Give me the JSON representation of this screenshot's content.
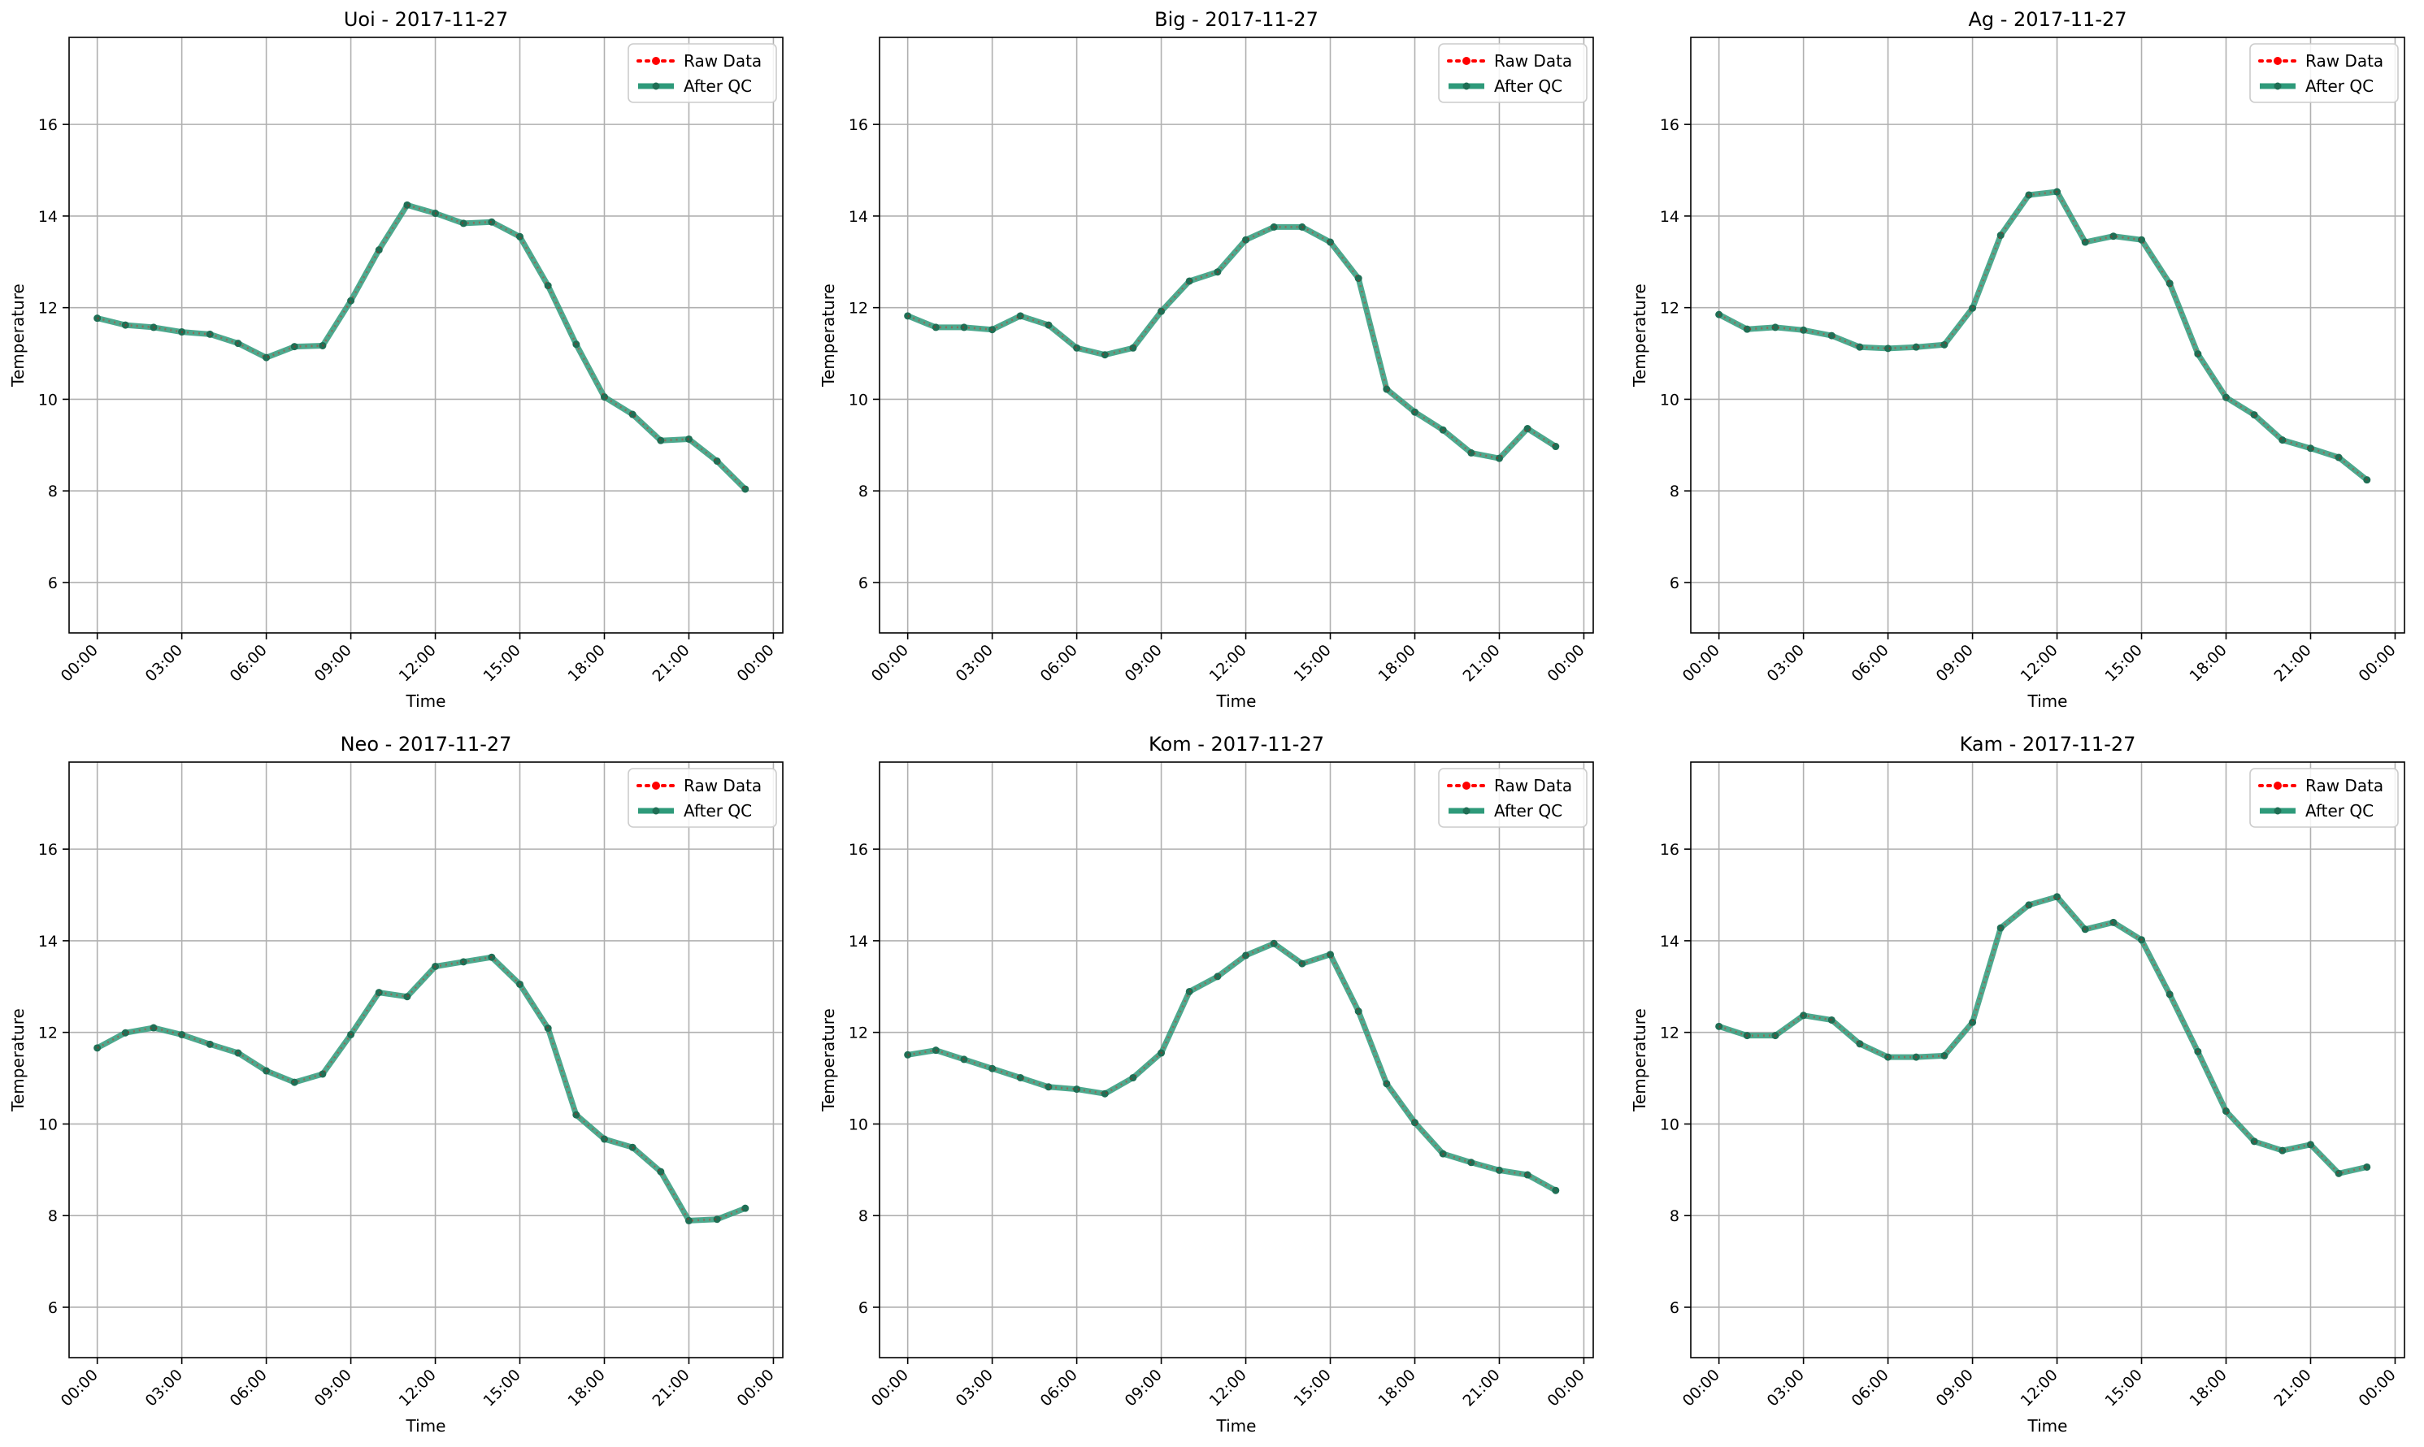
{
  "figure": {
    "legend_placement": "upper right",
    "grid": true
  },
  "chart_data": [
    {
      "type": "line",
      "title": "Uoi - 2017-11-27",
      "xlabel": "Time",
      "ylabel": "Temperature",
      "xlim": [
        "23:00 (prev day)",
        "00:20 (next day)"
      ],
      "ylim": [
        4.9,
        17.9
      ],
      "x_ticks": [
        "00:00",
        "03:00",
        "06:00",
        "09:00",
        "12:00",
        "15:00",
        "18:00",
        "21:00",
        "00:00"
      ],
      "y_ticks": [
        "6",
        "8",
        "10",
        "12",
        "14",
        "16"
      ],
      "x_hours": [
        0,
        1,
        2,
        3,
        4,
        5,
        6,
        7,
        8,
        9,
        10,
        11,
        12,
        13,
        14,
        15,
        16,
        17,
        18,
        19,
        20,
        21,
        22,
        23
      ],
      "series": [
        {
          "name": "Raw Data",
          "color": "#ff0000",
          "values": [
            11.77,
            11.62,
            11.57,
            11.47,
            11.42,
            11.22,
            10.91,
            11.15,
            11.17,
            12.15,
            13.26,
            14.24,
            14.06,
            13.84,
            13.87,
            13.55,
            12.48,
            11.2,
            10.05,
            9.67,
            9.1,
            9.13,
            8.65,
            8.04
          ]
        },
        {
          "name": "After QC",
          "color": "#2e9a7a",
          "values": [
            11.77,
            11.62,
            11.57,
            11.47,
            11.42,
            11.22,
            10.91,
            11.15,
            11.17,
            12.15,
            13.26,
            14.24,
            14.06,
            13.84,
            13.87,
            13.55,
            12.48,
            11.2,
            10.05,
            9.67,
            9.1,
            9.13,
            8.65,
            8.04
          ]
        }
      ]
    },
    {
      "type": "line",
      "title": "Big - 2017-11-27",
      "xlabel": "Time",
      "ylabel": "Temperature",
      "xlim": [
        "23:00 (prev day)",
        "00:20 (next day)"
      ],
      "ylim": [
        4.9,
        17.9
      ],
      "x_ticks": [
        "00:00",
        "03:00",
        "06:00",
        "09:00",
        "12:00",
        "15:00",
        "18:00",
        "21:00",
        "00:00"
      ],
      "y_ticks": [
        "6",
        "8",
        "10",
        "12",
        "14",
        "16"
      ],
      "x_hours": [
        0,
        1,
        2,
        3,
        4,
        5,
        6,
        7,
        8,
        9,
        10,
        11,
        12,
        13,
        14,
        15,
        16,
        17,
        18,
        19,
        20,
        21,
        22,
        23
      ],
      "series": [
        {
          "name": "Raw Data",
          "color": "#ff0000",
          "values": [
            11.82,
            11.57,
            11.57,
            11.52,
            11.82,
            11.62,
            11.12,
            10.97,
            11.12,
            11.92,
            12.58,
            12.78,
            13.48,
            13.76,
            13.76,
            13.43,
            12.64,
            10.22,
            9.72,
            9.33,
            8.83,
            8.71,
            9.36,
            8.97
          ]
        },
        {
          "name": "After QC",
          "color": "#2e9a7a",
          "values": [
            11.82,
            11.57,
            11.57,
            11.52,
            11.82,
            11.62,
            11.12,
            10.97,
            11.12,
            11.92,
            12.58,
            12.78,
            13.48,
            13.76,
            13.76,
            13.43,
            12.64,
            10.22,
            9.72,
            9.33,
            8.83,
            8.71,
            9.36,
            8.97
          ]
        }
      ]
    },
    {
      "type": "line",
      "title": "Ag - 2017-11-27",
      "xlabel": "Time",
      "ylabel": "Temperature",
      "xlim": [
        "23:00 (prev day)",
        "00:20 (next day)"
      ],
      "ylim": [
        4.9,
        17.9
      ],
      "x_ticks": [
        "00:00",
        "03:00",
        "06:00",
        "09:00",
        "12:00",
        "15:00",
        "18:00",
        "21:00",
        "00:00"
      ],
      "y_ticks": [
        "6",
        "8",
        "10",
        "12",
        "14",
        "16"
      ],
      "x_hours": [
        0,
        1,
        2,
        3,
        4,
        5,
        6,
        7,
        8,
        9,
        10,
        11,
        12,
        13,
        14,
        15,
        16,
        17,
        18,
        19,
        20,
        21,
        22,
        23
      ],
      "series": [
        {
          "name": "Raw Data",
          "color": "#ff0000",
          "values": [
            11.85,
            11.53,
            11.57,
            11.51,
            11.39,
            11.14,
            11.11,
            11.14,
            11.19,
            11.99,
            13.58,
            14.46,
            14.53,
            13.43,
            13.56,
            13.48,
            12.53,
            10.99,
            10.04,
            9.66,
            9.11,
            8.93,
            8.73,
            8.24
          ]
        },
        {
          "name": "After QC",
          "color": "#2e9a7a",
          "values": [
            11.85,
            11.53,
            11.57,
            11.51,
            11.39,
            11.14,
            11.11,
            11.14,
            11.19,
            11.99,
            13.58,
            14.46,
            14.53,
            13.43,
            13.56,
            13.48,
            12.53,
            10.99,
            10.04,
            9.66,
            9.11,
            8.93,
            8.73,
            8.24
          ]
        }
      ]
    },
    {
      "type": "line",
      "title": "Neo - 2017-11-27",
      "xlabel": "Time",
      "ylabel": "Temperature",
      "xlim": [
        "23:00 (prev day)",
        "00:20 (next day)"
      ],
      "ylim": [
        4.9,
        17.9
      ],
      "x_ticks": [
        "00:00",
        "03:00",
        "06:00",
        "09:00",
        "12:00",
        "15:00",
        "18:00",
        "21:00",
        "00:00"
      ],
      "y_ticks": [
        "6",
        "8",
        "10",
        "12",
        "14",
        "16"
      ],
      "x_hours": [
        0,
        1,
        2,
        3,
        4,
        5,
        6,
        7,
        8,
        9,
        10,
        11,
        12,
        13,
        14,
        15,
        16,
        17,
        18,
        19,
        20,
        21,
        22,
        23
      ],
      "series": [
        {
          "name": "Raw Data",
          "color": "#ff0000",
          "values": [
            11.66,
            11.99,
            12.1,
            11.95,
            11.74,
            11.55,
            11.16,
            10.91,
            11.09,
            11.95,
            12.87,
            12.78,
            13.44,
            13.54,
            13.64,
            13.05,
            12.09,
            10.2,
            9.67,
            9.49,
            8.96,
            7.89,
            7.92,
            8.16
          ]
        },
        {
          "name": "After QC",
          "color": "#2e9a7a",
          "values": [
            11.66,
            11.99,
            12.1,
            11.95,
            11.74,
            11.55,
            11.16,
            10.91,
            11.09,
            11.95,
            12.87,
            12.78,
            13.44,
            13.54,
            13.64,
            13.05,
            12.09,
            10.2,
            9.67,
            9.49,
            8.96,
            7.89,
            7.92,
            8.16
          ]
        }
      ]
    },
    {
      "type": "line",
      "title": "Kom - 2017-11-27",
      "xlabel": "Time",
      "ylabel": "Temperature",
      "xlim": [
        "23:00 (prev day)",
        "00:20 (next day)"
      ],
      "ylim": [
        4.9,
        17.9
      ],
      "x_ticks": [
        "00:00",
        "03:00",
        "06:00",
        "09:00",
        "12:00",
        "15:00",
        "18:00",
        "21:00",
        "00:00"
      ],
      "y_ticks": [
        "6",
        "8",
        "10",
        "12",
        "14",
        "16"
      ],
      "x_hours": [
        0,
        1,
        2,
        3,
        4,
        5,
        6,
        7,
        8,
        9,
        10,
        11,
        12,
        13,
        14,
        15,
        16,
        17,
        18,
        19,
        20,
        21,
        22,
        23
      ],
      "series": [
        {
          "name": "Raw Data",
          "color": "#ff0000",
          "values": [
            11.51,
            11.61,
            11.41,
            11.21,
            11.01,
            10.81,
            10.76,
            10.66,
            11.01,
            11.55,
            12.89,
            13.22,
            13.68,
            13.94,
            13.5,
            13.7,
            12.46,
            10.88,
            10.03,
            9.35,
            9.16,
            8.99,
            8.89,
            8.55
          ]
        },
        {
          "name": "After QC",
          "color": "#2e9a7a",
          "values": [
            11.51,
            11.61,
            11.41,
            11.21,
            11.01,
            10.81,
            10.76,
            10.66,
            11.01,
            11.55,
            12.89,
            13.22,
            13.68,
            13.94,
            13.5,
            13.7,
            12.46,
            10.88,
            10.03,
            9.35,
            9.16,
            8.99,
            8.89,
            8.55
          ]
        }
      ]
    },
    {
      "type": "line",
      "title": "Kam - 2017-11-27",
      "xlabel": "Time",
      "ylabel": "Temperature",
      "xlim": [
        "23:00 (prev day)",
        "00:20 (next day)"
      ],
      "ylim": [
        4.9,
        17.9
      ],
      "x_ticks": [
        "00:00",
        "03:00",
        "06:00",
        "09:00",
        "12:00",
        "15:00",
        "18:00",
        "21:00",
        "00:00"
      ],
      "y_ticks": [
        "6",
        "8",
        "10",
        "12",
        "14",
        "16"
      ],
      "x_hours": [
        0,
        1,
        2,
        3,
        4,
        5,
        6,
        7,
        8,
        9,
        10,
        11,
        12,
        13,
        14,
        15,
        16,
        17,
        18,
        19,
        20,
        21,
        22,
        23
      ],
      "series": [
        {
          "name": "Raw Data",
          "color": "#ff0000",
          "values": [
            12.13,
            11.93,
            11.93,
            12.37,
            12.27,
            11.75,
            11.46,
            11.46,
            11.49,
            12.22,
            14.28,
            14.78,
            14.96,
            14.25,
            14.4,
            14.02,
            12.83,
            11.58,
            10.28,
            9.62,
            9.42,
            9.55,
            8.92,
            9.06
          ]
        },
        {
          "name": "After QC",
          "color": "#2e9a7a",
          "values": [
            12.13,
            11.93,
            11.93,
            12.37,
            12.27,
            11.75,
            11.46,
            11.46,
            11.49,
            12.22,
            14.28,
            14.78,
            14.96,
            14.25,
            14.4,
            14.02,
            12.83,
            11.58,
            10.28,
            9.62,
            9.42,
            9.55,
            8.92,
            9.06
          ]
        }
      ]
    }
  ]
}
